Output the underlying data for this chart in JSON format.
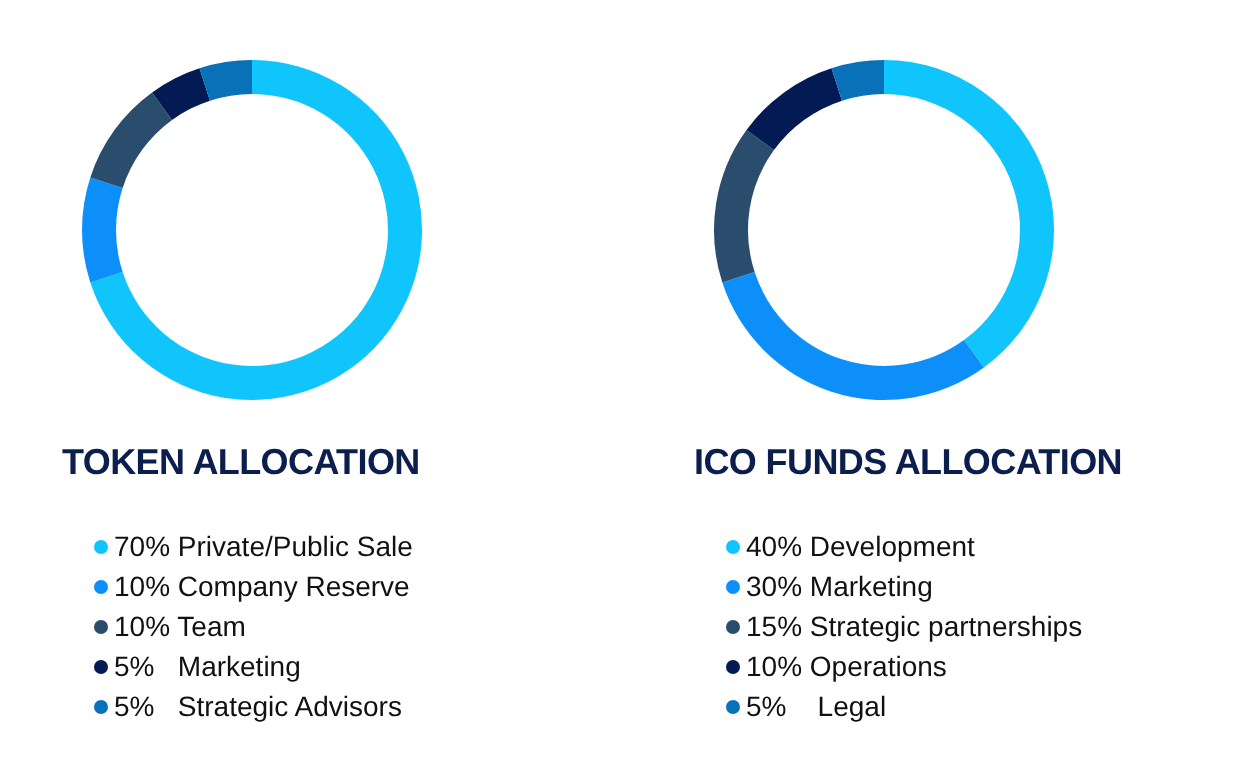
{
  "chart_data": [
    {
      "type": "donut",
      "title": "TOKEN ALLOCATION",
      "legend": "bottom",
      "categories": [
        "70% Private/Public Sale",
        "10% Company Reserve",
        "10% Team",
        "5%   Marketing",
        "5%   Strategic Advisors"
      ],
      "values": [
        70,
        10,
        10,
        5,
        5
      ],
      "colors": [
        "#10c4fc",
        "#0d8ffa",
        "#2a4d6e",
        "#041a55",
        "#0871b8"
      ]
    },
    {
      "type": "donut",
      "title": "ICO FUNDS ALLOCATION",
      "legend": "bottom",
      "categories": [
        "40% Development",
        "30% Marketing",
        "15% Strategic partnerships",
        "10% Operations",
        "5%    Legal"
      ],
      "values": [
        40,
        30,
        15,
        10,
        5
      ],
      "colors": [
        "#10c4fc",
        "#0d8ffa",
        "#2a4d6e",
        "#041a55",
        "#0871b8"
      ]
    }
  ]
}
